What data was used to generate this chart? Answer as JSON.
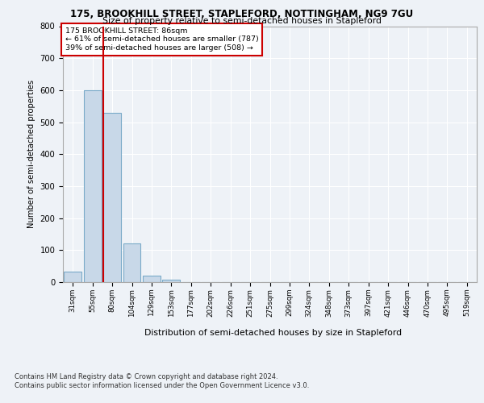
{
  "title1": "175, BROOKHILL STREET, STAPLEFORD, NOTTINGHAM, NG9 7GU",
  "title2": "Size of property relative to semi-detached houses in Stapleford",
  "xlabel": "Distribution of semi-detached houses by size in Stapleford",
  "ylabel": "Number of semi-detached properties",
  "bin_labels": [
    "31sqm",
    "55sqm",
    "80sqm",
    "104sqm",
    "129sqm",
    "153sqm",
    "177sqm",
    "202sqm",
    "226sqm",
    "251sqm",
    "275sqm",
    "299sqm",
    "324sqm",
    "348sqm",
    "373sqm",
    "397sqm",
    "421sqm",
    "446sqm",
    "470sqm",
    "495sqm",
    "519sqm"
  ],
  "bar_values": [
    32,
    600,
    530,
    120,
    20,
    8,
    0,
    0,
    0,
    0,
    0,
    0,
    0,
    0,
    0,
    0,
    0,
    0,
    0,
    0,
    0
  ],
  "bar_color": "#c8d8e8",
  "bar_edge_color": "#7aaac8",
  "property_line_bin": 2,
  "annotation_title": "175 BROOKHILL STREET: 86sqm",
  "annotation_line1": "← 61% of semi-detached houses are smaller (787)",
  "annotation_line2": "39% of semi-detached houses are larger (508) →",
  "annotation_box_color": "#ffffff",
  "annotation_box_edge": "#cc0000",
  "red_line_color": "#cc0000",
  "ylim": [
    0,
    800
  ],
  "yticks": [
    0,
    100,
    200,
    300,
    400,
    500,
    600,
    700,
    800
  ],
  "footer1": "Contains HM Land Registry data © Crown copyright and database right 2024.",
  "footer2": "Contains public sector information licensed under the Open Government Licence v3.0.",
  "background_color": "#eef2f7",
  "grid_color": "#ffffff"
}
